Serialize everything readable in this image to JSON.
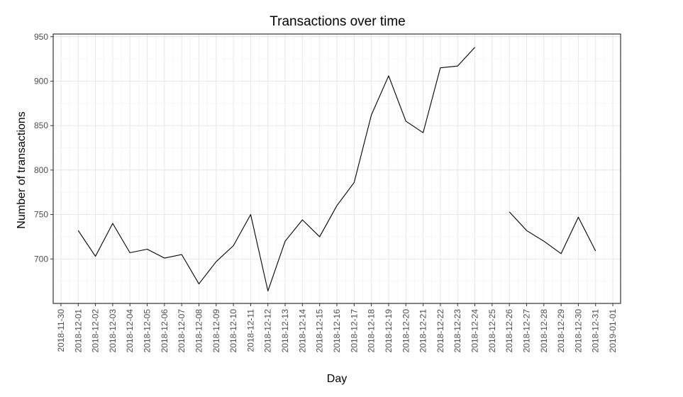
{
  "chart_data": {
    "type": "line",
    "title": "Transactions over time",
    "xlabel": "Day",
    "ylabel": "Number of transactions",
    "x_ticks": [
      "2018-11-30",
      "2018-12-01",
      "2018-12-02",
      "2018-12-03",
      "2018-12-04",
      "2018-12-05",
      "2018-12-06",
      "2018-12-07",
      "2018-12-08",
      "2018-12-09",
      "2018-12-10",
      "2018-12-11",
      "2018-12-12",
      "2018-12-13",
      "2018-12-14",
      "2018-12-15",
      "2018-12-16",
      "2018-12-17",
      "2018-12-18",
      "2018-12-19",
      "2018-12-20",
      "2018-12-21",
      "2018-12-22",
      "2018-12-23",
      "2018-12-24",
      "2018-12-25",
      "2018-12-26",
      "2018-12-27",
      "2018-12-28",
      "2018-12-29",
      "2018-12-30",
      "2018-12-31",
      "2019-01-01"
    ],
    "y_ticks": [
      700,
      750,
      800,
      850,
      900,
      950
    ],
    "ylim": [
      650,
      953
    ],
    "grid": true,
    "series": [
      {
        "color": "#000000",
        "x": [
          "2018-12-01",
          "2018-12-02",
          "2018-12-03",
          "2018-12-04",
          "2018-12-05",
          "2018-12-06",
          "2018-12-07",
          "2018-12-08",
          "2018-12-09",
          "2018-12-10",
          "2018-12-11",
          "2018-12-12",
          "2018-12-13",
          "2018-12-14",
          "2018-12-15",
          "2018-12-16",
          "2018-12-17",
          "2018-12-18",
          "2018-12-19",
          "2018-12-20",
          "2018-12-21",
          "2018-12-22",
          "2018-12-23",
          "2018-12-24",
          "2018-12-25",
          "2018-12-26",
          "2018-12-27",
          "2018-12-28",
          "2018-12-29",
          "2018-12-30",
          "2018-12-31"
        ],
        "values": [
          732,
          703,
          740,
          707,
          711,
          701,
          705,
          672,
          697,
          715,
          750,
          664,
          720,
          744,
          725,
          760,
          786,
          862,
          906,
          855,
          842,
          915,
          917,
          938,
          null,
          753,
          732,
          720,
          706,
          747,
          709
        ]
      }
    ]
  }
}
